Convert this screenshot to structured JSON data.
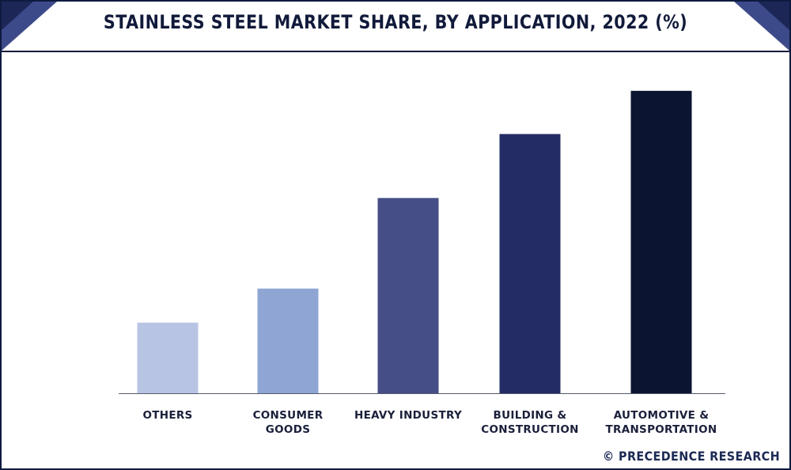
{
  "header": {
    "title": "STAINLESS STEEL MARKET SHARE, BY APPLICATION, 2022 (%)"
  },
  "chart_data": {
    "type": "bar",
    "title": "STAINLESS STEEL MARKET SHARE, BY APPLICATION, 2022 (%)",
    "xlabel": "",
    "ylabel": "",
    "categories": [
      [
        "OTHERS"
      ],
      [
        "CONSUMER",
        "GOODS"
      ],
      [
        "HEAVY INDUSTRY"
      ],
      [
        "BUILDING &",
        "CONSTRUCTION"
      ],
      [
        "AUTOMOTIVE &",
        "TRANSPORTATION"
      ]
    ],
    "values": [
      8.5,
      12.6,
      23.5,
      31.2,
      36.4
    ],
    "ylim": [
      0,
      40
    ],
    "colors": [
      "#b8c4e3",
      "#8fa6d4",
      "#454e86",
      "#232c65",
      "#0b1431"
    ],
    "grid": false,
    "legend": "none"
  },
  "footer": {
    "credit": "© PRECEDENCE RESEARCH"
  }
}
